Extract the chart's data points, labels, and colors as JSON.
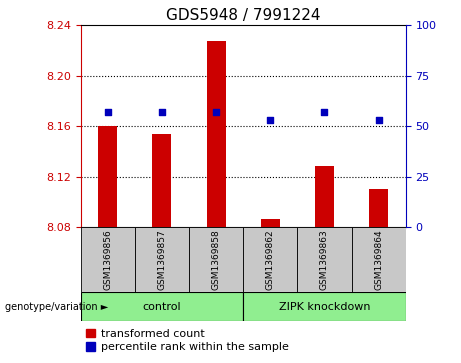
{
  "title": "GDS5948 / 7991224",
  "samples": [
    "GSM1369856",
    "GSM1369857",
    "GSM1369858",
    "GSM1369862",
    "GSM1369863",
    "GSM1369864"
  ],
  "transformed_counts": [
    8.16,
    8.154,
    8.228,
    8.086,
    8.128,
    8.11
  ],
  "percentile_ranks": [
    57,
    57,
    57,
    53,
    57,
    53
  ],
  "ylim_left": [
    8.08,
    8.24
  ],
  "ylim_right": [
    0,
    100
  ],
  "yticks_left": [
    8.08,
    8.12,
    8.16,
    8.2,
    8.24
  ],
  "yticks_right": [
    0,
    25,
    50,
    75,
    100
  ],
  "bar_color": "#CC0000",
  "dot_color": "#0000BB",
  "bar_bottom": 8.08,
  "bar_width": 0.35,
  "bg_label": "#C8C8C8",
  "bg_group": "#90EE90",
  "label_fontsize": 6.5,
  "title_fontsize": 11,
  "tick_fontsize": 8,
  "legend_fontsize": 8,
  "group_spans": [
    {
      "label": "control",
      "xstart": -0.5,
      "xend": 2.5
    },
    {
      "label": "ZIPK knockdown",
      "xstart": 2.5,
      "xend": 5.5
    }
  ]
}
